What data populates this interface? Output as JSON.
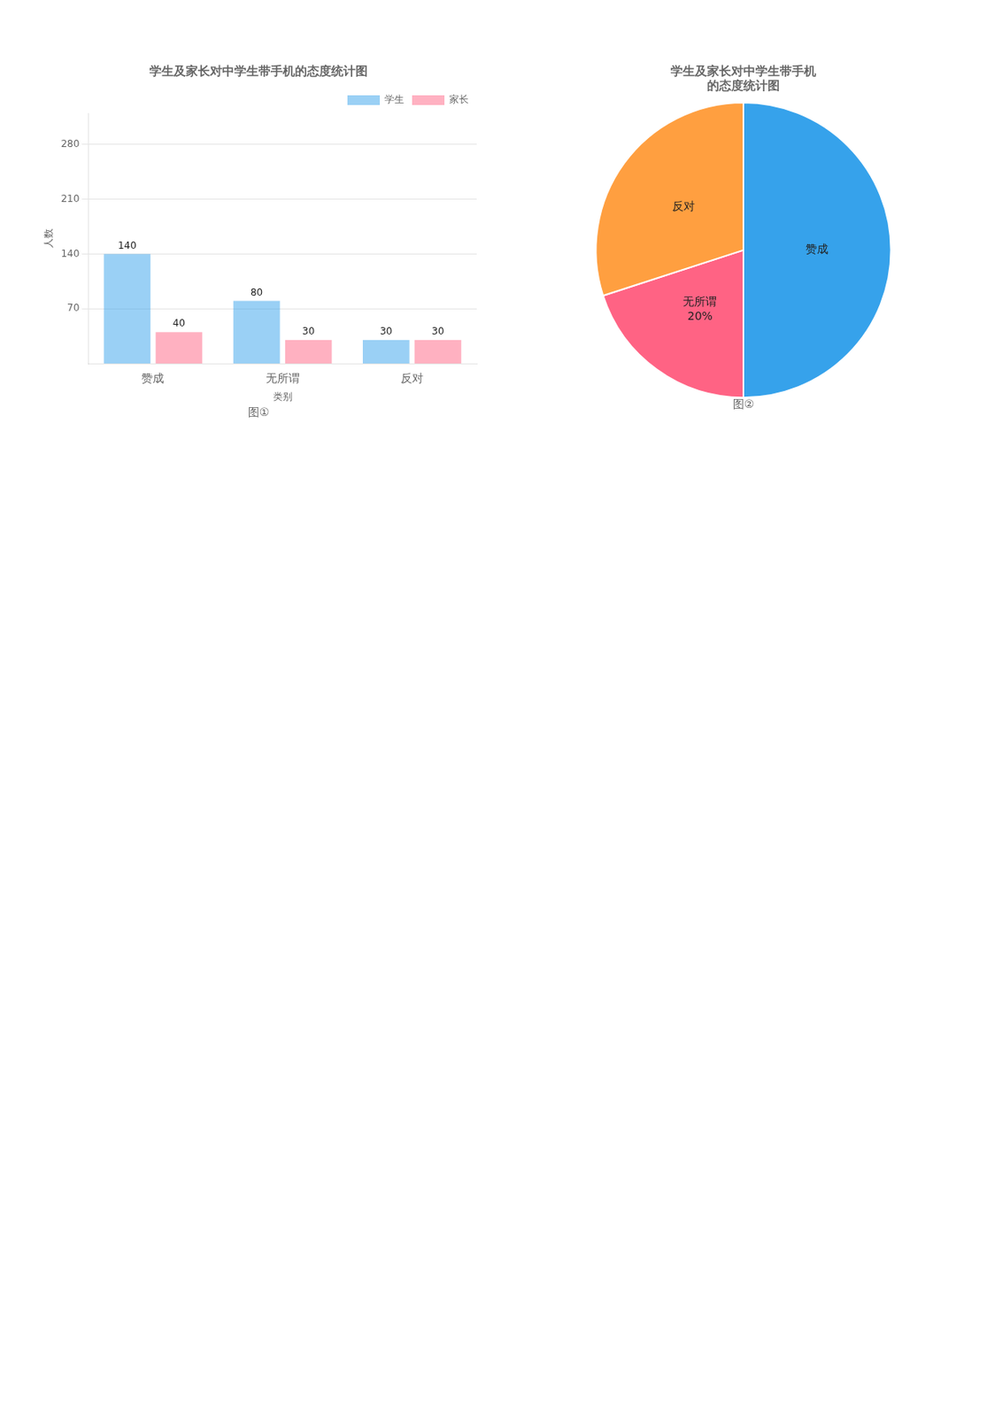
{
  "chart_data": [
    {
      "type": "bar",
      "title": "学生及家长对中学生带手机的态度统计图",
      "subtitle": "图①",
      "categories": [
        "赞成",
        "无所谓",
        "反对"
      ],
      "series": [
        {
          "name": "学生",
          "values": [
            140,
            80,
            30
          ]
        },
        {
          "name": "家长",
          "values": [
            40,
            30,
            30
          ]
        }
      ],
      "x_label": "类别",
      "y_label": "人数",
      "ylim": [
        0,
        320
      ],
      "yticks": [
        70,
        140,
        210,
        280
      ],
      "grid": true,
      "legend": "upper right",
      "data_labels": true
    },
    {
      "type": "pie",
      "title": [
        "学生及家长对中学生带手机",
        "的态度统计图"
      ],
      "subtitle": "图②",
      "categories": [
        "赞成",
        "无所谓",
        "反对"
      ],
      "values": [
        50,
        20,
        30
      ],
      "value_labels": [
        null,
        "20%",
        null
      ]
    }
  ]
}
